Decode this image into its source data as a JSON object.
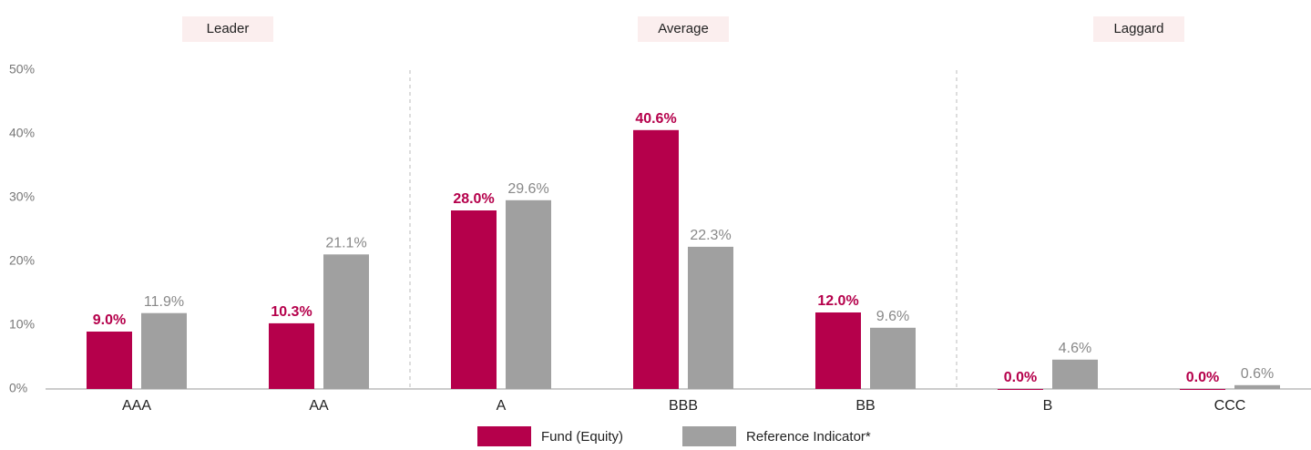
{
  "chart_data": {
    "type": "bar",
    "categories": [
      "AAA",
      "AA",
      "A",
      "BBB",
      "BB",
      "B",
      "CCC"
    ],
    "groups": [
      {
        "name": "Leader",
        "members": [
          "AAA",
          "AA"
        ]
      },
      {
        "name": "Average",
        "members": [
          "A",
          "BBB",
          "BB"
        ]
      },
      {
        "name": "Laggard",
        "members": [
          "B",
          "CCC"
        ]
      }
    ],
    "series": [
      {
        "name": "Fund (Equity)",
        "color": "#b5004b",
        "values": [
          9.0,
          10.3,
          28.0,
          40.6,
          12.0,
          0.0,
          0.0
        ],
        "value_labels": [
          "9.0%",
          "10.3%",
          "28.0%",
          "40.6%",
          "12.0%",
          "0.0%",
          "0.0%"
        ]
      },
      {
        "name": "Reference Indicator*",
        "color": "#a0a0a0",
        "values": [
          11.9,
          21.1,
          29.6,
          22.3,
          9.6,
          4.6,
          0.6
        ],
        "value_labels": [
          "11.9%",
          "21.1%",
          "29.6%",
          "22.3%",
          "9.6%",
          "4.6%",
          "0.6%"
        ]
      }
    ],
    "ylim": [
      0,
      50
    ],
    "yticks": [
      {
        "value": 0,
        "label": "0%"
      },
      {
        "value": 10,
        "label": "10%"
      },
      {
        "value": 20,
        "label": "20%"
      },
      {
        "value": 30,
        "label": "30%"
      },
      {
        "value": 40,
        "label": "40%"
      },
      {
        "value": 50,
        "label": "50%"
      }
    ],
    "grid": false,
    "legend": "bottom"
  }
}
